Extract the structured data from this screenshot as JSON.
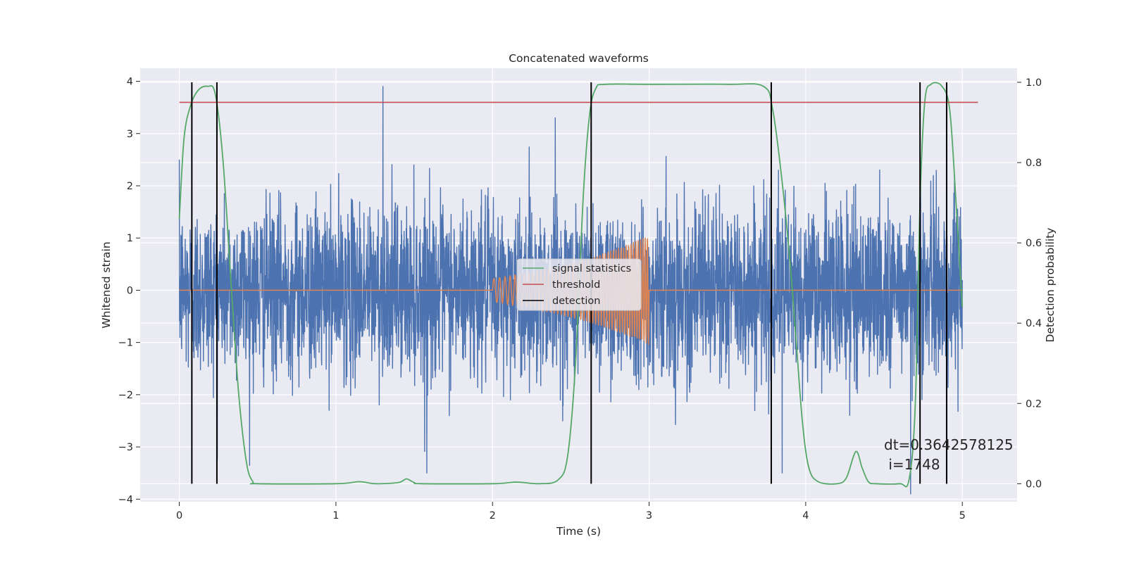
{
  "chart_data": {
    "type": "line",
    "title": "Concatenated waveforms",
    "xlabel": "Time (s)",
    "ylabel": "Whitened strain",
    "ylabel_right": "Detection probability",
    "xlim": [
      -0.25,
      5.35
    ],
    "ylim": [
      -4.05,
      4.25
    ],
    "ylim_right": [
      -0.045,
      1.035
    ],
    "x_ticks": [
      0,
      1,
      2,
      3,
      4,
      5
    ],
    "y_ticks": [
      -4,
      -3,
      -2,
      -1,
      0,
      1,
      2,
      3,
      4
    ],
    "y_ticks_right": [
      0.0,
      0.2,
      0.4,
      0.6,
      0.8,
      1.0
    ],
    "y_tick_labels": [
      "−4",
      "−3",
      "−2",
      "−1",
      "0",
      "1",
      "2",
      "3",
      "4"
    ],
    "y_tick_labels_right": [
      "0.0",
      "0.2",
      "0.4",
      "0.6",
      "0.8",
      "1.0"
    ],
    "grid": true,
    "legend_position": "center",
    "legend": [
      {
        "label": "signal statistics",
        "color": "#55a868"
      },
      {
        "label": "threshold",
        "color": "#c44e52"
      },
      {
        "label": "detection",
        "color": "#000000"
      }
    ],
    "annotation": {
      "line1": "dt=0.3642578125",
      "line2": " i=1748",
      "x": 4.5,
      "y": -3.05
    },
    "series": [
      {
        "name": "whitened strain",
        "axis": "left",
        "color": "#4c72b0",
        "x_range": [
          0,
          5
        ],
        "noise_std": 0.8,
        "peaks": [
          [
            0.0,
            2.5
          ],
          [
            1.3,
            3.9
          ],
          [
            1.58,
            -3.5
          ],
          [
            2.4,
            3.3
          ],
          [
            3.85,
            -3.5
          ],
          [
            4.67,
            -3.9
          ],
          [
            4.95,
            2.2
          ]
        ]
      },
      {
        "name": "injected waveform",
        "axis": "left",
        "color": "#dd8452",
        "x": [
          0,
          2,
          2.2,
          2.4,
          2.6,
          2.8,
          3.0,
          3.001,
          5
        ],
        "envelope": [
          0,
          0.22,
          0.32,
          0.45,
          0.6,
          0.8,
          1.05,
          0,
          0
        ],
        "chirp_cycles": 48
      },
      {
        "name": "signal statistics",
        "axis": "right",
        "color": "#55a868",
        "x": [
          0,
          0.03,
          0.07,
          0.12,
          0.18,
          0.23,
          0.28,
          0.33,
          0.38,
          0.43,
          0.47,
          0.5,
          1.0,
          1.15,
          1.25,
          1.4,
          1.45,
          1.5,
          1.55,
          2.0,
          2.15,
          2.3,
          2.42,
          2.48,
          2.53,
          2.58,
          2.62,
          2.66,
          2.72,
          3.0,
          3.5,
          3.73,
          3.79,
          3.85,
          3.9,
          3.94,
          3.98,
          4.02,
          4.08,
          4.2,
          4.26,
          4.32,
          4.36,
          4.4,
          4.45,
          4.6,
          4.66,
          4.7,
          4.73,
          4.76,
          4.8,
          4.87,
          4.92,
          4.96,
          5.0
        ],
        "y": [
          0.66,
          0.86,
          0.94,
          0.98,
          0.99,
          0.97,
          0.8,
          0.5,
          0.22,
          0.05,
          0.005,
          0.0,
          0.0,
          0.005,
          0.0,
          0.003,
          0.012,
          0.003,
          0.0,
          0.0,
          0.004,
          0.0,
          0.01,
          0.07,
          0.3,
          0.72,
          0.92,
          0.985,
          0.995,
          0.995,
          0.995,
          0.99,
          0.93,
          0.75,
          0.55,
          0.35,
          0.15,
          0.04,
          0.005,
          0.0,
          0.015,
          0.08,
          0.04,
          0.005,
          0.0,
          0.0,
          0.01,
          0.2,
          0.7,
          0.95,
          0.995,
          0.99,
          0.93,
          0.7,
          0.44
        ]
      },
      {
        "name": "threshold",
        "axis": "right",
        "color": "#c44e52",
        "x": [
          0,
          5.1
        ],
        "y": [
          0.95,
          0.95
        ]
      },
      {
        "name": "detection",
        "axis": "right",
        "color": "#000000",
        "x": [
          0.08,
          0.24,
          2.63,
          3.78,
          4.73,
          4.9
        ],
        "y_range": [
          0.0,
          1.0
        ]
      }
    ]
  }
}
